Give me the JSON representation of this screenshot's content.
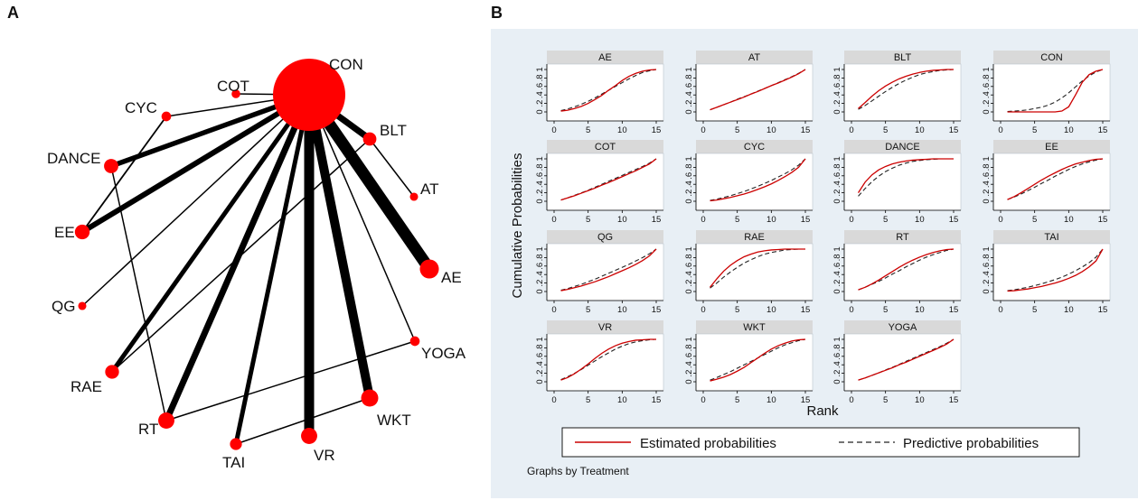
{
  "panel_a_label": "A",
  "panel_b_label": "B",
  "colors": {
    "node": "#ff0000",
    "edge": "#000000",
    "panel_b_bg": "#e8eff5",
    "facet_bg": "#ffffff",
    "facet_header": "#d9d9d9",
    "estimated": "#cc0000",
    "predictive": "#222222"
  },
  "chart_data": [
    {
      "type": "network",
      "title": "",
      "nodes": [
        {
          "id": "CON",
          "label": "CON",
          "size": 10
        },
        {
          "id": "COT",
          "label": "COT",
          "size": 1
        },
        {
          "id": "CYC",
          "label": "CYC",
          "size": 1.2
        },
        {
          "id": "DANCE",
          "label": "DANCE",
          "size": 2.2
        },
        {
          "id": "EE",
          "label": "EE",
          "size": 2.3
        },
        {
          "id": "QG",
          "label": "QG",
          "size": 0.9
        },
        {
          "id": "RAE",
          "label": "RAE",
          "size": 2.1
        },
        {
          "id": "RT",
          "label": "RT",
          "size": 2.6
        },
        {
          "id": "TAI",
          "label": "TAI",
          "size": 1.7
        },
        {
          "id": "VR",
          "label": "VR",
          "size": 2.6
        },
        {
          "id": "WKT",
          "label": "WKT",
          "size": 2.8
        },
        {
          "id": "YOGA",
          "label": "YOGA",
          "size": 1.2
        },
        {
          "id": "AE",
          "label": "AE",
          "size": 3.2
        },
        {
          "id": "AT",
          "label": "AT",
          "size": 0.9
        },
        {
          "id": "BLT",
          "label": "BLT",
          "size": 2.0
        }
      ],
      "edges": [
        {
          "from": "CON",
          "to": "COT",
          "weight": 1.5
        },
        {
          "from": "CON",
          "to": "CYC",
          "weight": 1.5
        },
        {
          "from": "CON",
          "to": "DANCE",
          "weight": 5.5
        },
        {
          "from": "CON",
          "to": "EE",
          "weight": 6
        },
        {
          "from": "CON",
          "to": "QG",
          "weight": 1.5
        },
        {
          "from": "CON",
          "to": "RAE",
          "weight": 5
        },
        {
          "from": "CON",
          "to": "RT",
          "weight": 7
        },
        {
          "from": "CON",
          "to": "TAI",
          "weight": 5
        },
        {
          "from": "CON",
          "to": "VR",
          "weight": 11
        },
        {
          "from": "CON",
          "to": "WKT",
          "weight": 10
        },
        {
          "from": "CON",
          "to": "YOGA",
          "weight": 1.5
        },
        {
          "from": "CON",
          "to": "AE",
          "weight": 13
        },
        {
          "from": "CON",
          "to": "BLT",
          "weight": 7
        },
        {
          "from": "BLT",
          "to": "AT",
          "weight": 1.5
        },
        {
          "from": "CYC",
          "to": "EE",
          "weight": 1.8
        },
        {
          "from": "DANCE",
          "to": "RT",
          "weight": 1.5
        },
        {
          "from": "BLT",
          "to": "RAE",
          "weight": 1.5
        },
        {
          "from": "RT",
          "to": "YOGA",
          "weight": 1.5
        },
        {
          "from": "TAI",
          "to": "WKT",
          "weight": 1.5
        }
      ]
    },
    {
      "type": "line",
      "title": "",
      "xlabel": "Rank",
      "ylabel": "Cumulative Probabilities",
      "xlim": [
        0,
        15
      ],
      "ylim": [
        0,
        1
      ],
      "xticks": [
        "0",
        "5",
        "10",
        "15"
      ],
      "yticks": [
        "0",
        ".2",
        ".4",
        ".6",
        ".8",
        "1"
      ],
      "x": [
        1,
        2,
        3,
        4,
        5,
        6,
        7,
        8,
        9,
        10,
        11,
        12,
        13,
        14,
        15
      ],
      "series_names": [
        "Estimated probabilities",
        "Predictive probabilities"
      ],
      "note": "Graphs by Treatment",
      "facets": [
        {
          "name": "AE",
          "estimated": [
            0.02,
            0.04,
            0.08,
            0.13,
            0.2,
            0.29,
            0.39,
            0.51,
            0.62,
            0.74,
            0.84,
            0.91,
            0.96,
            0.99,
            1.0
          ],
          "predictive": [
            0.03,
            0.07,
            0.12,
            0.18,
            0.25,
            0.33,
            0.42,
            0.51,
            0.6,
            0.69,
            0.78,
            0.86,
            0.93,
            0.97,
            1.0
          ]
        },
        {
          "name": "AT",
          "estimated": [
            0.05,
            0.11,
            0.17,
            0.23,
            0.29,
            0.35,
            0.42,
            0.48,
            0.55,
            0.62,
            0.68,
            0.75,
            0.82,
            0.9,
            1.0
          ],
          "predictive": [
            0.05,
            0.11,
            0.17,
            0.23,
            0.3,
            0.36,
            0.42,
            0.49,
            0.55,
            0.62,
            0.69,
            0.76,
            0.83,
            0.91,
            1.0
          ]
        },
        {
          "name": "BLT",
          "estimated": [
            0.08,
            0.22,
            0.37,
            0.5,
            0.61,
            0.7,
            0.78,
            0.84,
            0.89,
            0.93,
            0.96,
            0.98,
            0.99,
            1.0,
            1.0
          ],
          "predictive": [
            0.06,
            0.15,
            0.26,
            0.37,
            0.48,
            0.58,
            0.67,
            0.75,
            0.82,
            0.88,
            0.92,
            0.95,
            0.98,
            0.99,
            1.0
          ]
        },
        {
          "name": "CON",
          "estimated": [
            0.0,
            0.0,
            0.0,
            0.0,
            0.0,
            0.0,
            0.0,
            0.0,
            0.02,
            0.12,
            0.4,
            0.7,
            0.88,
            0.96,
            1.0
          ],
          "predictive": [
            0.01,
            0.02,
            0.03,
            0.05,
            0.08,
            0.11,
            0.16,
            0.23,
            0.33,
            0.45,
            0.59,
            0.73,
            0.85,
            0.94,
            1.0
          ]
        },
        {
          "name": "COT",
          "estimated": [
            0.03,
            0.08,
            0.13,
            0.19,
            0.25,
            0.31,
            0.38,
            0.44,
            0.51,
            0.58,
            0.65,
            0.72,
            0.8,
            0.88,
            1.0
          ],
          "predictive": [
            0.03,
            0.08,
            0.14,
            0.2,
            0.26,
            0.33,
            0.4,
            0.47,
            0.54,
            0.61,
            0.68,
            0.75,
            0.82,
            0.9,
            1.0
          ]
        },
        {
          "name": "CYC",
          "estimated": [
            0.01,
            0.03,
            0.06,
            0.09,
            0.13,
            0.17,
            0.22,
            0.28,
            0.34,
            0.41,
            0.49,
            0.58,
            0.68,
            0.8,
            1.0
          ],
          "predictive": [
            0.02,
            0.05,
            0.09,
            0.13,
            0.18,
            0.23,
            0.29,
            0.35,
            0.42,
            0.49,
            0.57,
            0.65,
            0.74,
            0.85,
            1.0
          ]
        },
        {
          "name": "DANCE",
          "estimated": [
            0.2,
            0.45,
            0.62,
            0.74,
            0.82,
            0.88,
            0.92,
            0.95,
            0.97,
            0.98,
            0.99,
            1.0,
            1.0,
            1.0,
            1.0
          ],
          "predictive": [
            0.12,
            0.3,
            0.46,
            0.59,
            0.7,
            0.78,
            0.85,
            0.9,
            0.94,
            0.96,
            0.98,
            0.99,
            1.0,
            1.0,
            1.0
          ]
        },
        {
          "name": "EE",
          "estimated": [
            0.04,
            0.11,
            0.2,
            0.3,
            0.4,
            0.5,
            0.59,
            0.67,
            0.75,
            0.82,
            0.88,
            0.92,
            0.96,
            0.99,
            1.0
          ],
          "predictive": [
            0.04,
            0.1,
            0.17,
            0.25,
            0.33,
            0.42,
            0.5,
            0.59,
            0.67,
            0.75,
            0.82,
            0.88,
            0.93,
            0.97,
            1.0
          ]
        },
        {
          "name": "QG",
          "estimated": [
            0.02,
            0.05,
            0.09,
            0.13,
            0.18,
            0.23,
            0.29,
            0.35,
            0.42,
            0.49,
            0.56,
            0.64,
            0.73,
            0.84,
            1.0
          ],
          "predictive": [
            0.03,
            0.07,
            0.12,
            0.17,
            0.23,
            0.29,
            0.36,
            0.43,
            0.5,
            0.57,
            0.64,
            0.72,
            0.8,
            0.89,
            1.0
          ]
        },
        {
          "name": "RAE",
          "estimated": [
            0.1,
            0.3,
            0.48,
            0.62,
            0.73,
            0.82,
            0.88,
            0.93,
            0.96,
            0.98,
            0.99,
            1.0,
            1.0,
            1.0,
            1.0
          ],
          "predictive": [
            0.08,
            0.2,
            0.34,
            0.46,
            0.57,
            0.67,
            0.75,
            0.82,
            0.88,
            0.92,
            0.95,
            0.98,
            0.99,
            1.0,
            1.0
          ]
        },
        {
          "name": "RT",
          "estimated": [
            0.04,
            0.1,
            0.18,
            0.27,
            0.37,
            0.47,
            0.57,
            0.66,
            0.74,
            0.81,
            0.87,
            0.92,
            0.96,
            0.99,
            1.0
          ],
          "predictive": [
            0.04,
            0.1,
            0.17,
            0.24,
            0.32,
            0.41,
            0.49,
            0.58,
            0.66,
            0.74,
            0.81,
            0.87,
            0.92,
            0.97,
            1.0
          ]
        },
        {
          "name": "TAI",
          "estimated": [
            0.01,
            0.02,
            0.04,
            0.06,
            0.09,
            0.12,
            0.16,
            0.2,
            0.25,
            0.31,
            0.38,
            0.47,
            0.58,
            0.72,
            1.0
          ],
          "predictive": [
            0.02,
            0.04,
            0.07,
            0.1,
            0.14,
            0.18,
            0.23,
            0.28,
            0.34,
            0.41,
            0.49,
            0.58,
            0.68,
            0.81,
            1.0
          ]
        },
        {
          "name": "VR",
          "estimated": [
            0.04,
            0.1,
            0.19,
            0.3,
            0.42,
            0.55,
            0.67,
            0.77,
            0.85,
            0.91,
            0.95,
            0.98,
            0.99,
            1.0,
            1.0
          ],
          "predictive": [
            0.05,
            0.12,
            0.2,
            0.29,
            0.39,
            0.49,
            0.59,
            0.68,
            0.77,
            0.84,
            0.9,
            0.94,
            0.97,
            0.99,
            1.0
          ]
        },
        {
          "name": "WKT",
          "estimated": [
            0.02,
            0.06,
            0.11,
            0.17,
            0.25,
            0.34,
            0.45,
            0.56,
            0.67,
            0.77,
            0.85,
            0.91,
            0.96,
            0.99,
            1.0
          ],
          "predictive": [
            0.04,
            0.1,
            0.17,
            0.24,
            0.32,
            0.4,
            0.48,
            0.56,
            0.64,
            0.72,
            0.8,
            0.87,
            0.92,
            0.97,
            1.0
          ]
        },
        {
          "name": "YOGA",
          "estimated": [
            0.04,
            0.09,
            0.15,
            0.21,
            0.27,
            0.33,
            0.4,
            0.46,
            0.53,
            0.6,
            0.67,
            0.74,
            0.81,
            0.89,
            1.0
          ],
          "predictive": [
            0.04,
            0.09,
            0.15,
            0.21,
            0.28,
            0.34,
            0.41,
            0.48,
            0.55,
            0.62,
            0.69,
            0.76,
            0.83,
            0.91,
            1.0
          ]
        }
      ]
    }
  ]
}
